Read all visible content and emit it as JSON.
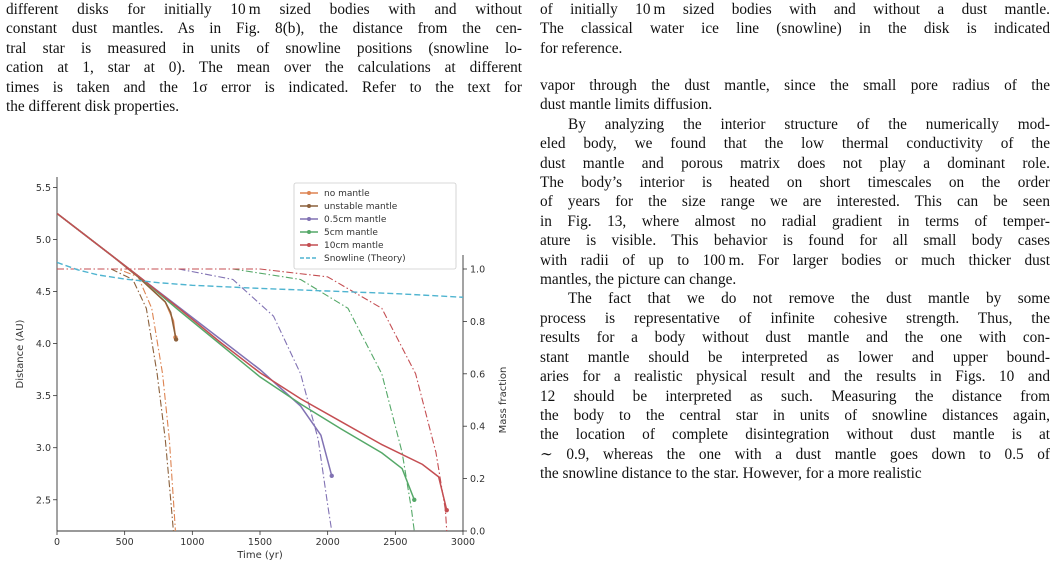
{
  "left_caption": {
    "lines": [
      "different disks for initially 10 m sized bodies with and without",
      "constant dust mantles. As in Fig. 8(b), the distance from the cen-",
      "tral star is measured in units of snowline positions (snowline lo-",
      "cation at 1, star at 0). The mean over the calculations at different",
      "times is taken and the 1σ error is indicated. Refer to the text for",
      "the different disk properties."
    ]
  },
  "right_caption": {
    "lines": [
      "of initially 10 m sized bodies with and without a dust mantle.",
      "The classical water ice line (snowline) in the disk is indicated",
      "for reference."
    ]
  },
  "right_body": {
    "paragraphs": [
      {
        "indent": false,
        "lines": [
          "vapor through the dust mantle, since the small pore radius of the",
          "dust mantle limits diffusion."
        ]
      },
      {
        "indent": true,
        "lines": [
          "By analyzing the interior structure of the numerically mod-",
          "eled body, we found that the low thermal conductivity of the",
          "dust mantle and porous matrix does not play a dominant role.",
          "The body’s interior is heated on short timescales on the order",
          "of years for the size range we are interested. This can be seen",
          "in Fig. 13, where almost no radial gradient in terms of temper-",
          "ature is visible. This behavior is found for all small body cases",
          "with radii of up to 100 m. For larger bodies or much thicker dust",
          "mantles, the picture can change."
        ]
      },
      {
        "indent": true,
        "lines": [
          "The fact that we do not remove the dust mantle by some",
          "process is representative of infinite cohesive strength. Thus, the",
          "results for a body without dust mantle and the one with con-",
          "stant mantle should be interpreted as lower and upper bound-",
          "aries for a realistic physical result and the results in Figs. 10 and",
          "12 should be interpreted as such. Measuring the distance from",
          "the body to the central star in units of snowline distances again,",
          "the location of complete disintegration without dust mantle is at",
          "∼ 0.9, whereas the one with a dust mantle goes down to 0.5 of",
          "the snowline distance to the star. However, for a more realistic"
        ]
      }
    ]
  },
  "chart_data": {
    "type": "line",
    "xlabel": "Time (yr)",
    "ylabel": "Distance (AU)",
    "y2label": "Mass fraction",
    "xlim": [
      0,
      3000
    ],
    "ylim": [
      2.2,
      5.6
    ],
    "y2lim": [
      0.0,
      1.0
    ],
    "xticks": [
      0,
      500,
      1000,
      1500,
      2000,
      2500,
      3000
    ],
    "yticks": [
      2.5,
      3.0,
      3.5,
      4.0,
      4.5,
      5.0,
      5.5
    ],
    "y2ticks": [
      0.0,
      0.2,
      0.4,
      0.6,
      0.8,
      1.0
    ],
    "grid": false,
    "legend_position": "top-right",
    "series": [
      {
        "name": "no mantle",
        "color": "#dd8452",
        "distance": [
          [
            0,
            5.25
          ],
          [
            200,
            5.05
          ],
          [
            400,
            4.85
          ],
          [
            600,
            4.64
          ],
          [
            700,
            4.52
          ],
          [
            800,
            4.4
          ],
          [
            860,
            4.22
          ],
          [
            875,
            4.06
          ]
        ],
        "mass_fraction": [
          [
            0,
            1.0
          ],
          [
            450,
            1.0
          ],
          [
            600,
            0.97
          ],
          [
            700,
            0.85
          ],
          [
            780,
            0.6
          ],
          [
            830,
            0.35
          ],
          [
            860,
            0.12
          ],
          [
            875,
            0.0
          ]
        ]
      },
      {
        "name": "unstable mantle",
        "color": "#8c613c",
        "distance": [
          [
            0,
            5.25
          ],
          [
            200,
            5.05
          ],
          [
            400,
            4.85
          ],
          [
            600,
            4.64
          ],
          [
            700,
            4.52
          ],
          [
            800,
            4.4
          ],
          [
            840,
            4.3
          ],
          [
            880,
            4.04
          ]
        ],
        "mass_fraction": [
          [
            0,
            1.0
          ],
          [
            400,
            1.0
          ],
          [
            560,
            0.96
          ],
          [
            660,
            0.85
          ],
          [
            740,
            0.6
          ],
          [
            800,
            0.35
          ],
          [
            840,
            0.12
          ],
          [
            860,
            0.0
          ]
        ]
      },
      {
        "name": "0.5cm mantle",
        "color": "#8172b3",
        "distance": [
          [
            0,
            5.25
          ],
          [
            300,
            4.95
          ],
          [
            600,
            4.65
          ],
          [
            900,
            4.35
          ],
          [
            1200,
            4.05
          ],
          [
            1500,
            3.75
          ],
          [
            1800,
            3.4
          ],
          [
            1950,
            3.12
          ],
          [
            2030,
            2.73
          ]
        ],
        "mass_fraction": [
          [
            0,
            1.0
          ],
          [
            900,
            1.0
          ],
          [
            1300,
            0.96
          ],
          [
            1600,
            0.82
          ],
          [
            1800,
            0.6
          ],
          [
            1930,
            0.35
          ],
          [
            2000,
            0.1
          ],
          [
            2030,
            0.0
          ]
        ]
      },
      {
        "name": "5cm mantle",
        "color": "#55a868",
        "distance": [
          [
            0,
            5.25
          ],
          [
            300,
            4.95
          ],
          [
            600,
            4.65
          ],
          [
            900,
            4.32
          ],
          [
            1200,
            4.0
          ],
          [
            1500,
            3.68
          ],
          [
            1800,
            3.42
          ],
          [
            2100,
            3.18
          ],
          [
            2400,
            2.95
          ],
          [
            2550,
            2.8
          ],
          [
            2640,
            2.5
          ]
        ],
        "mass_fraction": [
          [
            0,
            1.0
          ],
          [
            1300,
            1.0
          ],
          [
            1800,
            0.96
          ],
          [
            2150,
            0.85
          ],
          [
            2400,
            0.6
          ],
          [
            2550,
            0.3
          ],
          [
            2620,
            0.08
          ],
          [
            2640,
            0.0
          ]
        ]
      },
      {
        "name": "10cm mantle",
        "color": "#c44e52",
        "distance": [
          [
            0,
            5.25
          ],
          [
            300,
            4.95
          ],
          [
            600,
            4.65
          ],
          [
            900,
            4.34
          ],
          [
            1200,
            4.02
          ],
          [
            1500,
            3.72
          ],
          [
            1800,
            3.47
          ],
          [
            2100,
            3.25
          ],
          [
            2400,
            3.03
          ],
          [
            2700,
            2.84
          ],
          [
            2820,
            2.72
          ],
          [
            2880,
            2.4
          ]
        ],
        "mass_fraction": [
          [
            0,
            1.0
          ],
          [
            1500,
            1.0
          ],
          [
            2000,
            0.97
          ],
          [
            2400,
            0.85
          ],
          [
            2650,
            0.6
          ],
          [
            2800,
            0.3
          ],
          [
            2870,
            0.08
          ],
          [
            2880,
            0.0
          ]
        ]
      },
      {
        "name": "Snowline (Theory)",
        "color": "#4fb4d0",
        "dashed": true,
        "distance": [
          [
            0,
            4.78
          ],
          [
            150,
            4.71
          ],
          [
            300,
            4.66
          ],
          [
            500,
            4.62
          ],
          [
            750,
            4.585
          ],
          [
            1000,
            4.56
          ],
          [
            1500,
            4.53
          ],
          [
            2000,
            4.505
          ],
          [
            2500,
            4.48
          ],
          [
            3000,
            4.445
          ]
        ]
      }
    ]
  }
}
